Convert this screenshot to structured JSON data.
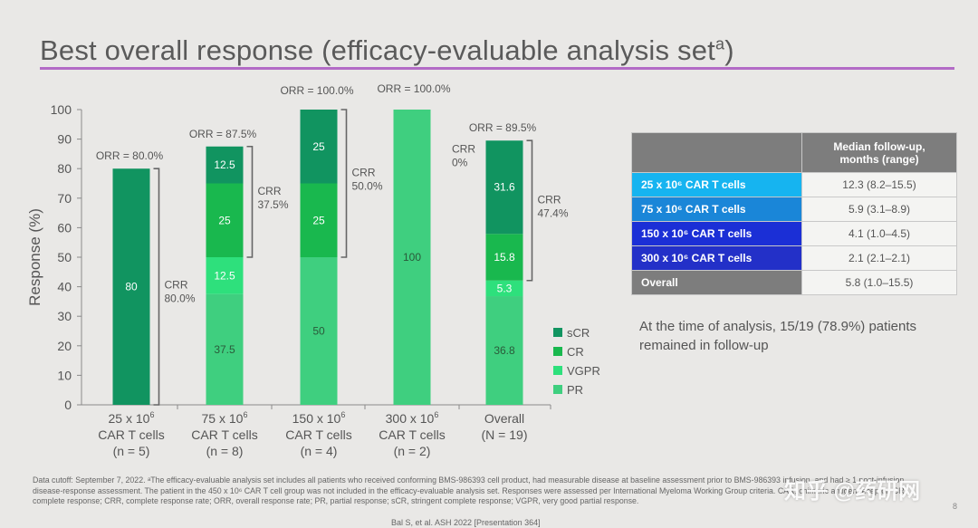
{
  "slide": {
    "title": "Best overall response (efficacy-evaluable analysis set",
    "title_sup": "a",
    "title_close": ")",
    "page_number": "8"
  },
  "chart_data": {
    "type": "bar",
    "stacked": true,
    "ylabel": "Response (%)",
    "ylim": [
      0,
      100
    ],
    "yticks": [
      0,
      10,
      20,
      30,
      40,
      50,
      60,
      70,
      80,
      90,
      100
    ],
    "categories": [
      {
        "line1": "25 x 10",
        "sup": "6",
        "line2": "CAR T cells",
        "line3": "(n = 5)"
      },
      {
        "line1": "75 x 10",
        "sup": "6",
        "line2": "CAR T cells",
        "line3": "(n = 8)"
      },
      {
        "line1": "150 x 10",
        "sup": "6",
        "line2": "CAR T cells",
        "line3": "(n = 4)"
      },
      {
        "line1": "300 x 10",
        "sup": "6",
        "line2": "CAR T cells",
        "line3": "(n = 2)"
      },
      {
        "line1": "Overall",
        "sup": "",
        "line2": "(N = 19)",
        "line3": ""
      }
    ],
    "series": [
      {
        "name": "PR",
        "color": "#3fcf7f",
        "values": [
          0,
          37.5,
          50,
          100,
          36.8
        ],
        "labels": [
          "",
          "37.5",
          "50",
          "100",
          "36.8"
        ]
      },
      {
        "name": "VGPR",
        "color": "#2ee07c",
        "values": [
          0,
          12.5,
          0,
          0,
          5.3
        ],
        "labels": [
          "",
          "12.5",
          "",
          "",
          "5.3"
        ]
      },
      {
        "name": "CR",
        "color": "#19b84e",
        "values": [
          0,
          25,
          25,
          0,
          15.8
        ],
        "labels": [
          "",
          "25",
          "25",
          "",
          "15.8"
        ]
      },
      {
        "name": "sCR",
        "color": "#119460",
        "values": [
          80,
          12.5,
          25,
          0,
          31.6
        ],
        "labels": [
          "80",
          "12.5",
          "25",
          "",
          "31.6"
        ]
      }
    ],
    "legend": [
      {
        "name": "sCR",
        "color": "#119460"
      },
      {
        "name": "CR",
        "color": "#19b84e"
      },
      {
        "name": "VGPR",
        "color": "#2ee07c"
      },
      {
        "name": "PR",
        "color": "#3fcf7f"
      }
    ],
    "orr_labels": [
      "ORR = 80.0%",
      "ORR = 87.5%",
      "ORR = 100.0%",
      "ORR = 100.0%",
      "ORR = 89.5%"
    ],
    "crr": [
      {
        "line1": "CRR",
        "line2": "80.0%",
        "from": 0,
        "to": 80
      },
      {
        "line1": "CRR",
        "line2": "37.5%",
        "from": 50,
        "to": 87.5
      },
      {
        "line1": "CRR",
        "line2": "50.0%",
        "from": 50,
        "to": 100
      },
      {
        "line1": "CRR",
        "line2": "0%",
        "from": null,
        "to": null
      },
      {
        "line1": "CRR",
        "line2": "47.4%",
        "from": 42.1,
        "to": 89.5
      }
    ]
  },
  "table": {
    "header": "Median follow-up, months (range)",
    "header_line1": "Median follow-up,",
    "header_line2": "months (range)",
    "rows": [
      {
        "label": "25 x 10⁶ CAR T cells",
        "value": "12.3 (8.2–15.5)",
        "color": "#16b4f0"
      },
      {
        "label": "75 x 10⁶ CAR T cells",
        "value": "5.9 (3.1–8.9)",
        "color": "#1a86d8"
      },
      {
        "label": "150 x 10⁶ CAR T cells",
        "value": "4.1 (1.0–4.5)",
        "color": "#1b2fd6"
      },
      {
        "label": "300 x 10⁶ CAR T cells",
        "value": "2.1 (2.1–2.1)",
        "color": "#2330c8"
      },
      {
        "label": "Overall",
        "value": "5.8 (1.0–15.5)",
        "color": "#7d7d7d"
      }
    ]
  },
  "note": "At the time of analysis, 15/19 (78.9%) patients remained in follow-up",
  "footnote": "Data cutoff: September 7, 2022. ᵃThe efficacy-evaluable analysis set includes all patients who received conforming BMS-986393 cell product, had measurable disease at baseline assessment prior to BMS-986393 infusion, and had ≥ 1 post-infusion disease-response assessment. The patient in the 450 x 10⁶ CAR T cell group was not included in the efficacy-evaluable analysis set. Responses were assessed per International Myeloma Working Group criteria. CAR, chimeric antigen receptor; CR, complete response; CRR, complete response rate; ORR, overall response rate; PR, partial response; sCR, stringent complete response; VGPR, very good partial response.",
  "citation": "Bal S, et al. ASH 2022 [Presentation 364]",
  "watermark": "知乎 @药研网"
}
